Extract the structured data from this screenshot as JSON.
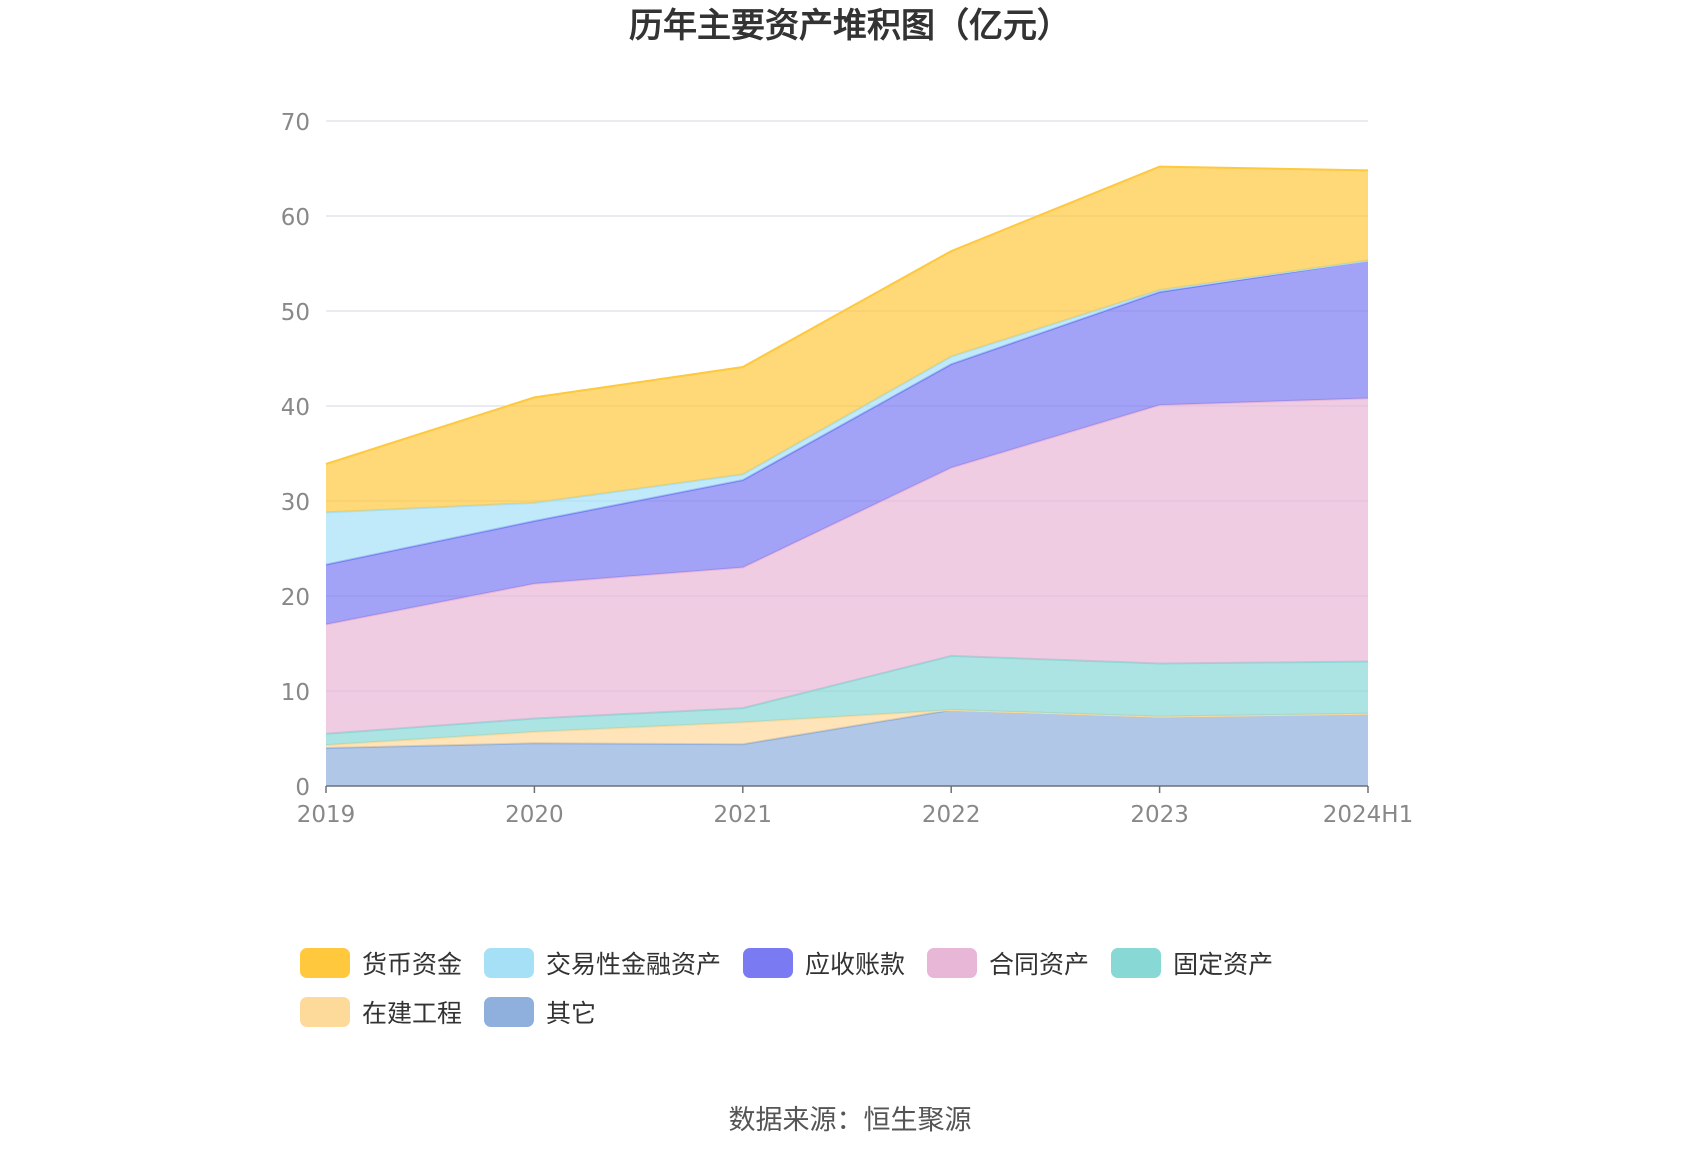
{
  "chart_data": {
    "type": "area",
    "stacked": true,
    "title": "历年主要资产堆积图（亿元）",
    "categories": [
      "2019",
      "2020",
      "2021",
      "2022",
      "2023",
      "2024H1"
    ],
    "ylim": [
      0,
      70
    ],
    "yticks": [
      0,
      10,
      20,
      30,
      40,
      50,
      60,
      70
    ],
    "grid": true,
    "legend_position": "bottom",
    "series": [
      {
        "name": "其它",
        "color": "#8FAFDD",
        "values": [
          4.0,
          4.5,
          4.4,
          8.0,
          7.3,
          7.6
        ]
      },
      {
        "name": "在建工程",
        "color": "#FDD99A",
        "values": [
          0.3,
          1.2,
          2.3,
          0.0,
          0.0,
          0.0
        ]
      },
      {
        "name": "固定资产",
        "color": "#88D8D6",
        "values": [
          1.2,
          1.4,
          1.5,
          5.7,
          5.6,
          5.5
        ]
      },
      {
        "name": "合同资产",
        "color": "#E8B6D6",
        "values": [
          11.5,
          14.2,
          14.8,
          19.8,
          27.2,
          27.7
        ]
      },
      {
        "name": "应收账款",
        "color": "#7A7AF2",
        "values": [
          6.3,
          6.6,
          9.2,
          10.9,
          11.9,
          14.5
        ]
      },
      {
        "name": "交易性金融资产",
        "color": "#A5E0F7",
        "values": [
          5.5,
          1.9,
          0.6,
          0.8,
          0.2,
          0.0
        ]
      },
      {
        "name": "货币资金",
        "color": "#FFC83D",
        "values": [
          5.1,
          11.1,
          11.3,
          11.1,
          13.0,
          9.5
        ]
      }
    ],
    "legend_order": [
      "货币资金",
      "交易性金融资产",
      "应收账款",
      "合同资产",
      "固定资产",
      "在建工程",
      "其它"
    ]
  },
  "source_text": "数据来源：恒生聚源"
}
